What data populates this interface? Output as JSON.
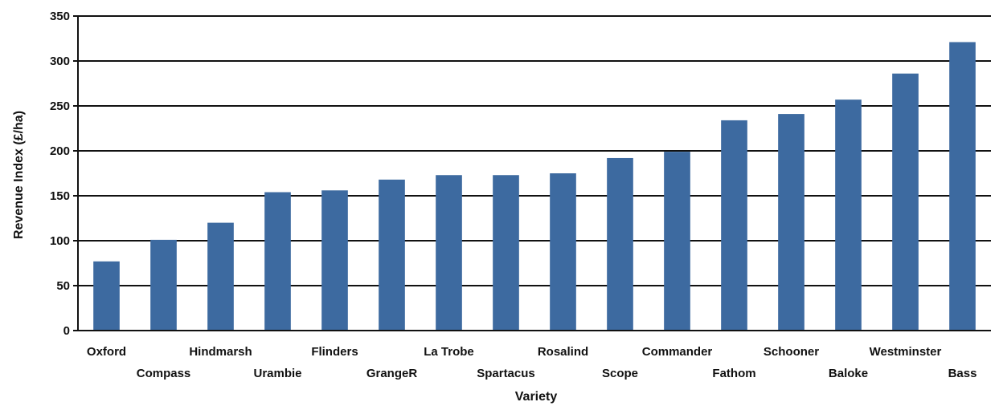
{
  "chart_data": {
    "type": "bar",
    "title": "",
    "xlabel": "Variety",
    "ylabel": "Revenue Index (£/ha)",
    "ylim": [
      0,
      350
    ],
    "yticks": [
      0,
      50,
      100,
      150,
      200,
      250,
      300,
      350
    ],
    "grid": true,
    "bar_color": "#3d6aa0",
    "categories": [
      "Oxford",
      "Compass",
      "Hindmarsh",
      "Urambie",
      "Flinders",
      "GrangeR",
      "La Trobe",
      "Spartacus",
      "Rosalind",
      "Scope",
      "Commander",
      "Fathom",
      "Schooner",
      "Baloke",
      "Westminster",
      "Bass"
    ],
    "values": [
      77,
      101,
      120,
      154,
      156,
      168,
      173,
      173,
      175,
      192,
      199,
      234,
      241,
      257,
      286,
      321
    ]
  }
}
